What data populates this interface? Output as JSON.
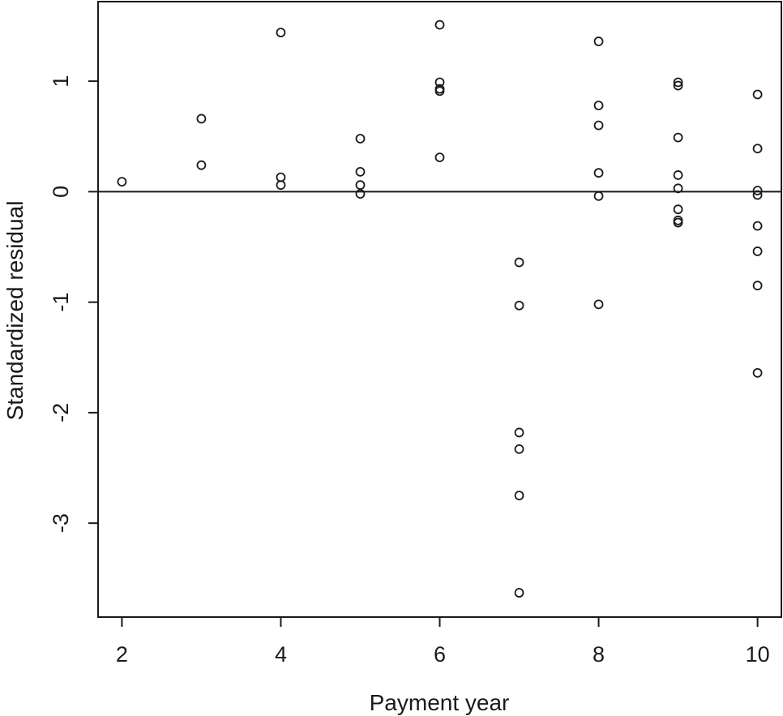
{
  "chart_data": {
    "type": "scatter",
    "xlabel": "Payment year",
    "ylabel": "Standardized residual",
    "xlim": [
      1.7,
      10.3
    ],
    "ylim": [
      -3.85,
      1.72
    ],
    "xticks": [
      2,
      4,
      6,
      8,
      10
    ],
    "yticks": [
      -3,
      -2,
      -1,
      0,
      1
    ],
    "reference_line_y": 0,
    "grid": false,
    "legend": "none",
    "marker": "open-circle",
    "colors": {
      "points": "#1a1a1a",
      "axes": "#1a1a1a"
    },
    "points": [
      {
        "x": 2,
        "y": 0.09
      },
      {
        "x": 3,
        "y": 0.66
      },
      {
        "x": 3,
        "y": 0.24
      },
      {
        "x": 4,
        "y": 1.44
      },
      {
        "x": 4,
        "y": 0.13
      },
      {
        "x": 4,
        "y": 0.06
      },
      {
        "x": 5,
        "y": 0.48
      },
      {
        "x": 5,
        "y": 0.18
      },
      {
        "x": 5,
        "y": 0.06
      },
      {
        "x": 5,
        "y": -0.02
      },
      {
        "x": 6,
        "y": 1.51
      },
      {
        "x": 6,
        "y": 0.99
      },
      {
        "x": 6,
        "y": 0.93
      },
      {
        "x": 6,
        "y": 0.91
      },
      {
        "x": 6,
        "y": 0.31
      },
      {
        "x": 7,
        "y": -0.64
      },
      {
        "x": 7,
        "y": -1.03
      },
      {
        "x": 7,
        "y": -2.18
      },
      {
        "x": 7,
        "y": -2.33
      },
      {
        "x": 7,
        "y": -2.75
      },
      {
        "x": 7,
        "y": -3.63
      },
      {
        "x": 8,
        "y": 1.36
      },
      {
        "x": 8,
        "y": 0.78
      },
      {
        "x": 8,
        "y": 0.6
      },
      {
        "x": 8,
        "y": 0.17
      },
      {
        "x": 8,
        "y": -0.04
      },
      {
        "x": 8,
        "y": -1.02
      },
      {
        "x": 9,
        "y": 0.99
      },
      {
        "x": 9,
        "y": 0.96
      },
      {
        "x": 9,
        "y": 0.49
      },
      {
        "x": 9,
        "y": 0.15
      },
      {
        "x": 9,
        "y": 0.03
      },
      {
        "x": 9,
        "y": -0.16
      },
      {
        "x": 9,
        "y": -0.26
      },
      {
        "x": 9,
        "y": -0.28
      },
      {
        "x": 10,
        "y": 0.88
      },
      {
        "x": 10,
        "y": 0.39
      },
      {
        "x": 10,
        "y": 0.01
      },
      {
        "x": 10,
        "y": -0.03
      },
      {
        "x": 10,
        "y": -0.31
      },
      {
        "x": 10,
        "y": -0.54
      },
      {
        "x": 10,
        "y": -0.85
      },
      {
        "x": 10,
        "y": -1.64
      }
    ]
  }
}
